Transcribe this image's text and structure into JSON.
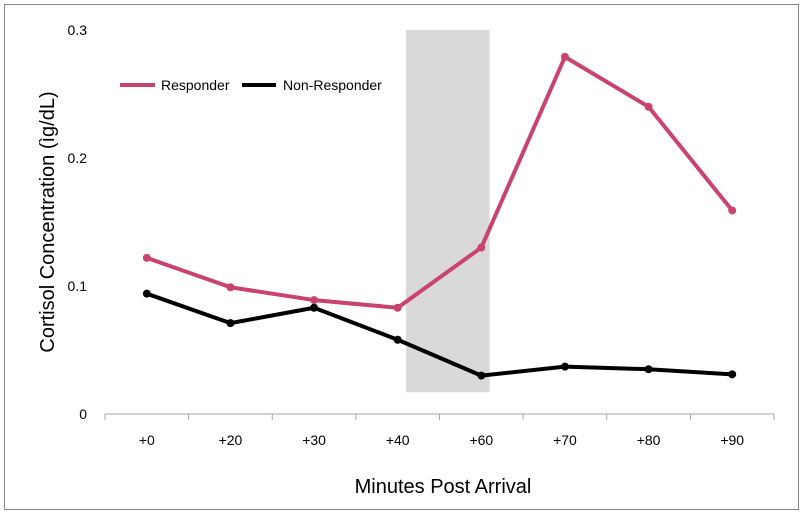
{
  "chart_data": {
    "type": "line",
    "title": "",
    "xlabel": "Minutes Post Arrival",
    "ylabel": "Cortisol Concentration (ìg/dL)",
    "categories": [
      "+0",
      "+20",
      "+30",
      "+40",
      "+60",
      "+70",
      "+80",
      "+90"
    ],
    "ylim": [
      0,
      0.3
    ],
    "yticks": [
      0,
      0.1,
      0.2,
      0.3
    ],
    "ytick_labels": [
      "0",
      "0.1",
      "0.2",
      "0.3"
    ],
    "grid": false,
    "legend_position": "top-left",
    "shaded_region": {
      "from_category": "+40",
      "to_category": "+60",
      "y_from": 0.017,
      "y_to": 0.3,
      "color": "#d9d9d9"
    },
    "series": [
      {
        "name": "Responder",
        "color": "#c9436e",
        "values": [
          0.122,
          0.099,
          0.089,
          0.083,
          0.13,
          0.279,
          0.24,
          0.159
        ]
      },
      {
        "name": "Non-Responder",
        "color": "#000000",
        "values": [
          0.094,
          0.071,
          0.083,
          0.058,
          0.03,
          0.037,
          0.035,
          0.031
        ]
      }
    ]
  }
}
